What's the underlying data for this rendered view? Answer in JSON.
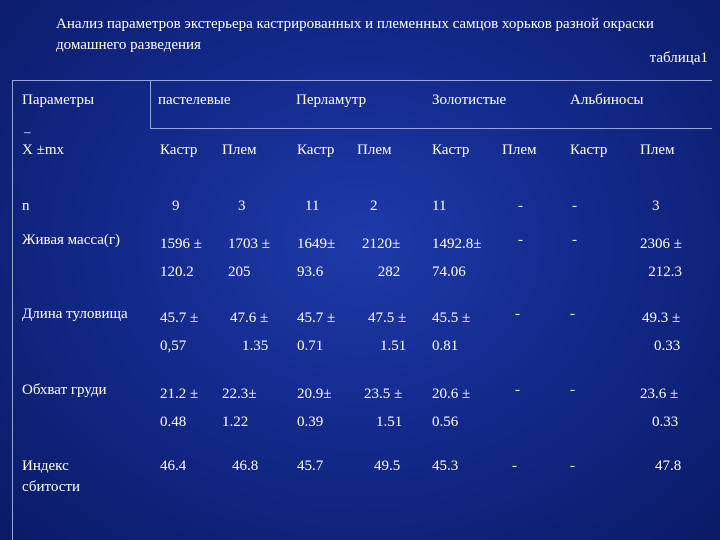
{
  "title": "Анализ параметров экстерьера кастрированных и племенных самцов хорьков разной окраски домашнего разведения",
  "table_label": "таблица1",
  "header": {
    "params": "Параметры",
    "xbar": "–",
    "stat": "X ±mx",
    "groups": [
      "пастелевые",
      "Перламутр",
      "Золотистые",
      "Альбиносы"
    ],
    "sub": [
      "Кастр",
      "Плем",
      "Кастр",
      "Плем",
      "Кастр",
      "Плем",
      "Кастр",
      "Плем"
    ]
  },
  "rows": [
    {
      "label": "n",
      "cells": [
        "9",
        "3",
        "11",
        "2",
        "11",
        "-",
        "-",
        "3"
      ]
    },
    {
      "label": "Живая масса(г)",
      "cells": [
        "1596 ±\n120.2",
        "1703 ±\n205",
        "1649±\n93.6",
        "2120±\n282",
        "1492.8±\n74.06",
        "-",
        "-",
        "2306 ±\n212.3"
      ]
    },
    {
      "label": "Длина туловища",
      "cells": [
        "45.7 ±\n0,57",
        "47.6 ±\n1.35",
        "45.7 ±\n0.71",
        "47.5 ±\n1.51",
        "45.5 ±\n0.81",
        "-",
        "-",
        "49.3 ±\n0.33"
      ]
    },
    {
      "label": "Обхват груди",
      "cells": [
        "21.2 ±\n0.48",
        "22.3±\n1.22",
        "20.9±\n0.39",
        "23.5 ±\n1.51",
        "20.6 ±\n0.56",
        "-",
        "-",
        "23.6 ±\n0.33"
      ]
    },
    {
      "label": "Индекс сбитости",
      "cells": [
        "46.4",
        "46.8",
        "45.7",
        "49.5",
        "45.3",
        "-",
        "-",
        "47.8"
      ]
    }
  ]
}
